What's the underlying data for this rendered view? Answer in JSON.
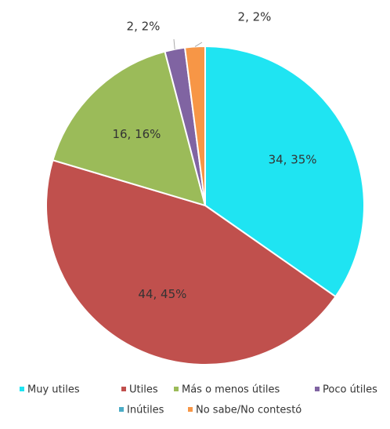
{
  "chart_data": {
    "type": "pie",
    "categories": [
      "Muy utiles",
      "Utiles",
      "Más o menos útiles",
      "Poco útiles",
      "Inútiles",
      "No sabe/No contestó"
    ],
    "values": [
      34,
      44,
      16,
      2,
      0,
      2
    ],
    "value_labels": [
      "34, 35%",
      "44, 45%",
      "16, 16%",
      "2, 2%",
      null,
      "2, 2%"
    ],
    "colors": [
      "#1fe4f2",
      "#c0504d",
      "#9bbb59",
      "#8064a2",
      "#4bacc6",
      "#f79646"
    ],
    "legend": "bottom"
  }
}
